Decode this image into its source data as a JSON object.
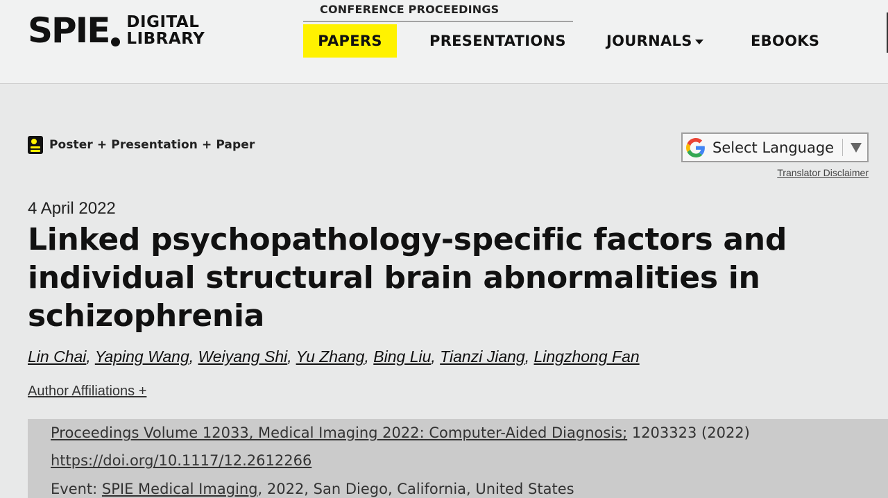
{
  "header": {
    "logo": {
      "brand": "SPIE",
      "line1": "DIGITAL",
      "line2": "LIBRARY"
    },
    "conference_label": "CONFERENCE PROCEEDINGS",
    "nav": {
      "papers": "PAPERS",
      "presentations": "PRESENTATIONS",
      "journals": "JOURNALS",
      "ebooks": "EBOOKS"
    },
    "active_nav_color": "#fff200"
  },
  "badge": {
    "icon": "poster-icon",
    "label": "Poster + Presentation + Paper"
  },
  "translate": {
    "icon": "google-g-icon",
    "label": "Select Language",
    "disclaimer": "Translator Disclaimer"
  },
  "article": {
    "date": "4 April 2022",
    "title": "Linked psychopathology-specific factors and individual structural brain abnormalities in schizophrenia",
    "authors": [
      "Lin Chai",
      "Yaping Wang",
      "Weiyang Shi",
      "Yu Zhang",
      "Bing Liu",
      "Tianzi Jiang",
      "Lingzhong Fan"
    ],
    "affiliations_label": "Author Affiliations +"
  },
  "proceedings": {
    "volume_link": "Proceedings Volume 12033, Medical Imaging 2022: Computer-Aided Diagnosis;",
    "volume_suffix": " 1203323 (2022)",
    "doi": "https://doi.org/10.1117/12.2612266",
    "event_prefix": "Event: ",
    "event_link": "SPIE Medical Imaging",
    "event_suffix": ", 2022, San Diego, California, United States"
  }
}
